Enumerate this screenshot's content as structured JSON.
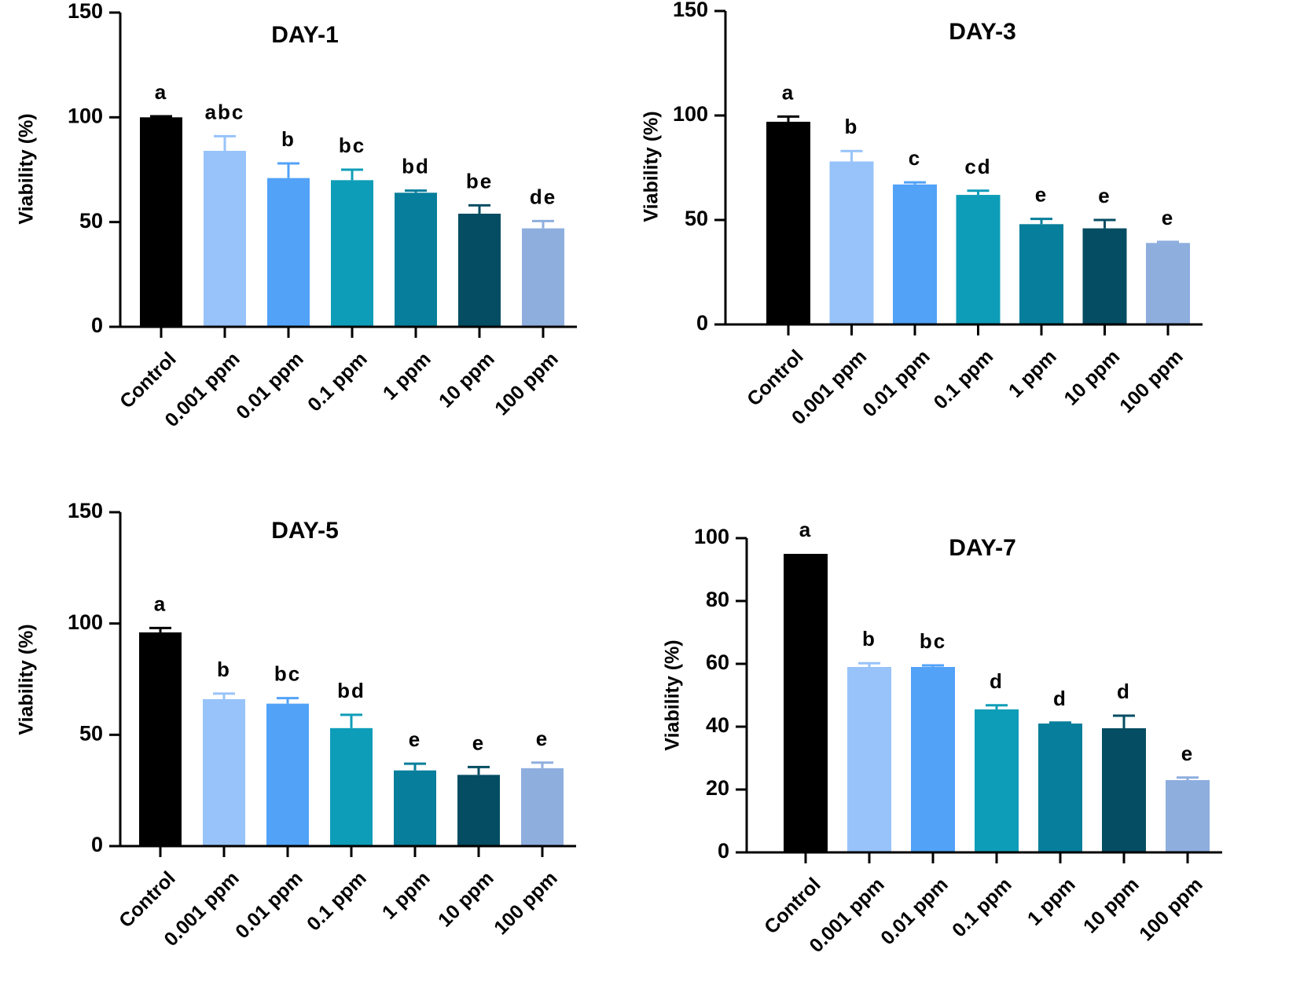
{
  "chart_data": [
    {
      "type": "bar",
      "title": "DAY-1",
      "ylabel": "Viability (%)",
      "xlabel": "",
      "ylim": [
        0,
        150
      ],
      "yticks": [
        0,
        50,
        100,
        150
      ],
      "categories": [
        "Control",
        "0.001 ppm",
        "0.01 ppm",
        "0.1 ppm",
        "1 ppm",
        "10 ppm",
        "100 ppm"
      ],
      "values": [
        100,
        84,
        71,
        70,
        64,
        54,
        47
      ],
      "errors": [
        0.5,
        7,
        7,
        5,
        1,
        4,
        3.5
      ],
      "significance": [
        "a",
        "abc",
        "b",
        "bc",
        "bd",
        "be",
        "de"
      ],
      "colors": [
        "#000000",
        "#97c3fa",
        "#52a2f8",
        "#0e9db8",
        "#077e9b",
        "#054d63",
        "#8eaede"
      ],
      "error_colors": [
        "#000000",
        "#97c3fa",
        "#52a2f8",
        "#0e9db8",
        "#077e9b",
        "#054d63",
        "#8eaede"
      ]
    },
    {
      "type": "bar",
      "title": "DAY-3",
      "ylabel": "Viability (%)",
      "xlabel": "",
      "ylim": [
        0,
        150
      ],
      "yticks": [
        0,
        50,
        100,
        150
      ],
      "categories": [
        "Control",
        "0.001 ppm",
        "0.01 ppm",
        "0.1 ppm",
        "1 ppm",
        "10 ppm",
        "100 ppm"
      ],
      "values": [
        97,
        78,
        67,
        62,
        48,
        46,
        39
      ],
      "errors": [
        2.5,
        5,
        1,
        2,
        2.5,
        4,
        0.5
      ],
      "significance": [
        "a",
        "b",
        "c",
        "cd",
        "e",
        "e",
        "e"
      ],
      "colors": [
        "#000000",
        "#97c3fa",
        "#52a2f8",
        "#0e9db8",
        "#077e9b",
        "#054d63",
        "#8eaede"
      ],
      "error_colors": [
        "#000000",
        "#97c3fa",
        "#52a2f8",
        "#0e9db8",
        "#077e9b",
        "#054d63",
        "#8eaede"
      ]
    },
    {
      "type": "bar",
      "title": "DAY-5",
      "ylabel": "Viability (%)",
      "xlabel": "",
      "ylim": [
        0,
        150
      ],
      "yticks": [
        0,
        50,
        100,
        150
      ],
      "categories": [
        "Control",
        "0.001 ppm",
        "0.01 ppm",
        "0.1 ppm",
        "1 ppm",
        "10 ppm",
        "100 ppm"
      ],
      "values": [
        96,
        66,
        64,
        53,
        34,
        32,
        35
      ],
      "errors": [
        2,
        2.5,
        2.5,
        6,
        3,
        3.5,
        2.5
      ],
      "significance": [
        "a",
        "b",
        "bc",
        "bd",
        "e",
        "e",
        "e"
      ],
      "colors": [
        "#000000",
        "#97c3fa",
        "#52a2f8",
        "#0e9db8",
        "#077e9b",
        "#054d63",
        "#8eaede"
      ],
      "error_colors": [
        "#000000",
        "#97c3fa",
        "#52a2f8",
        "#0e9db8",
        "#077e9b",
        "#054d63",
        "#8eaede"
      ]
    },
    {
      "type": "bar",
      "title": "DAY-7",
      "ylabel": "Viability (%)",
      "xlabel": "",
      "ylim": [
        0,
        100
      ],
      "yticks": [
        0,
        20,
        40,
        60,
        80,
        100
      ],
      "categories": [
        "Control",
        "0.001 ppm",
        "0.01 ppm",
        "0.1 ppm",
        "1 ppm",
        "10 ppm",
        "100 ppm"
      ],
      "values": [
        95,
        59,
        59,
        45.5,
        41,
        39.5,
        23
      ],
      "errors": [
        0,
        1.2,
        0.5,
        1.3,
        0.3,
        4,
        0.8
      ],
      "significance": [
        "a",
        "b",
        "bc",
        "d",
        "d",
        "d",
        "e"
      ],
      "colors": [
        "#000000",
        "#97c3fa",
        "#52a2f8",
        "#0e9db8",
        "#077e9b",
        "#054d63",
        "#8eaede"
      ],
      "error_colors": [
        "#000000",
        "#97c3fa",
        "#52a2f8",
        "#0e9db8",
        "#077e9b",
        "#054d63",
        "#8eaede"
      ]
    }
  ]
}
